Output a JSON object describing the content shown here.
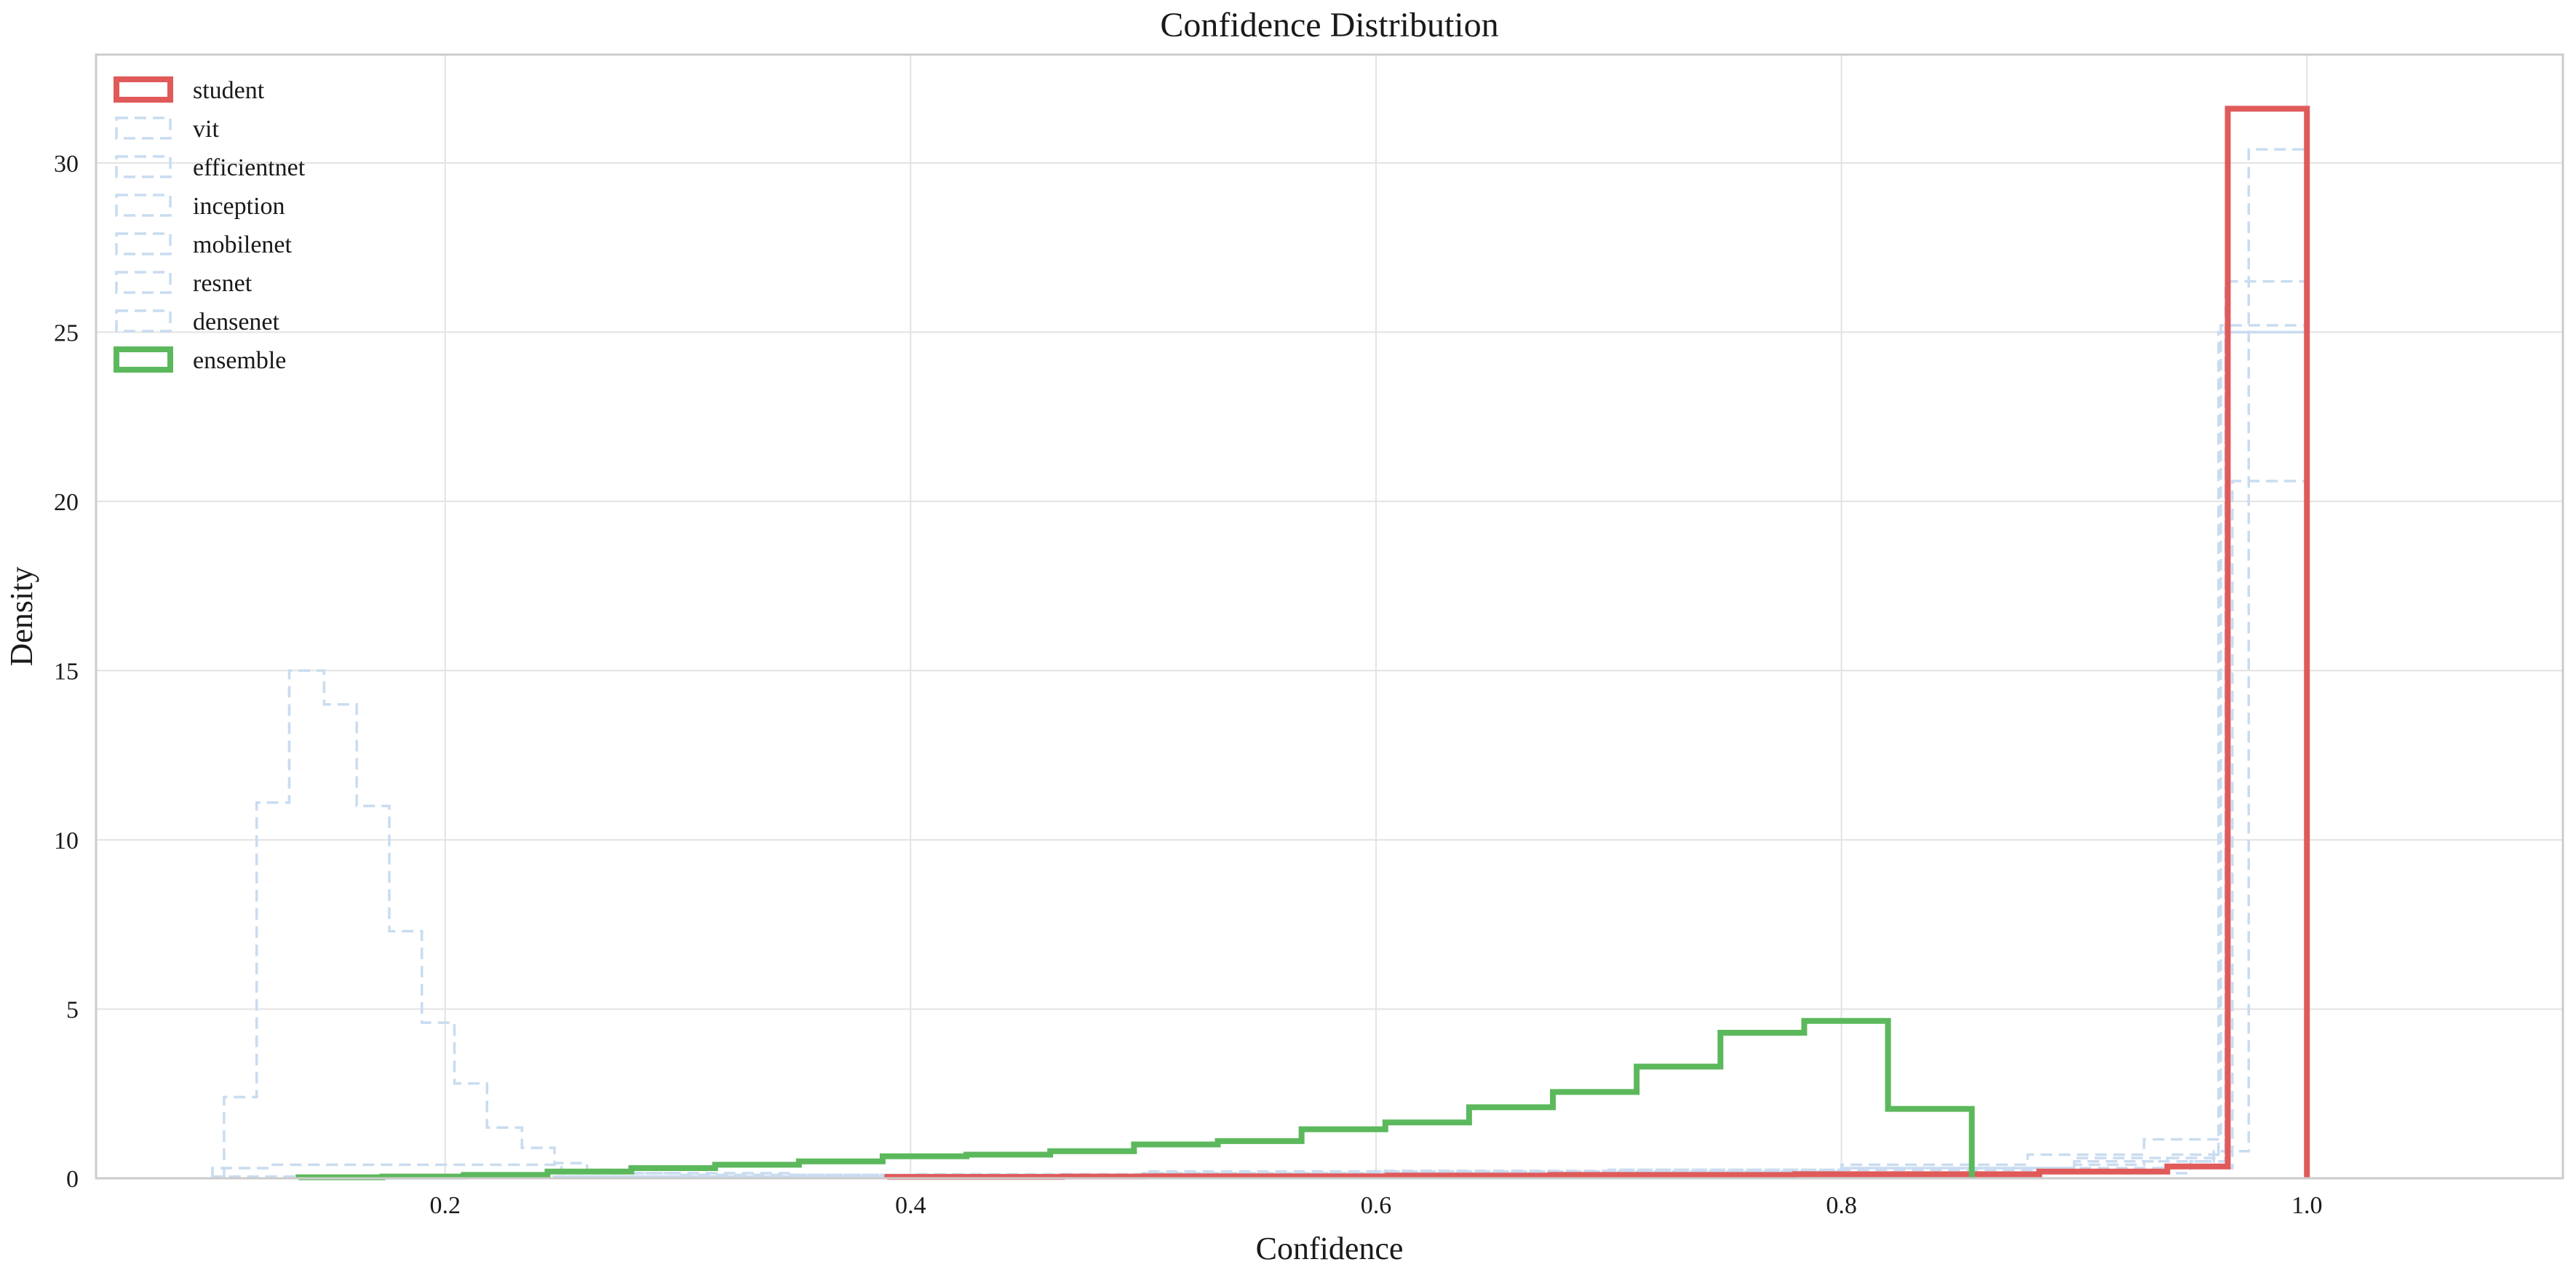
{
  "chart_data": {
    "type": "histogram",
    "title": "Confidence Distribution",
    "xlabel": "Confidence",
    "ylabel": "Density",
    "xlim": [
      0.05,
      1.11
    ],
    "ylim": [
      0,
      33.2
    ],
    "xticks": [
      0.2,
      0.4,
      0.6,
      0.8,
      1.0
    ],
    "xtick_labels": [
      "0.2",
      "0.4",
      "0.6",
      "0.8",
      "1.0"
    ],
    "yticks": [
      0,
      5,
      10,
      15,
      20,
      25,
      30
    ],
    "ytick_labels": [
      "0",
      "5",
      "10",
      "15",
      "20",
      "25",
      "30"
    ],
    "grid": true,
    "legend_position": "top-left",
    "series": [
      {
        "name": "student",
        "color": "#e05a5a",
        "style": "solid",
        "emphasis": "bold",
        "bins": [
          0.39,
          0.43,
          0.465,
          0.5,
          0.535,
          0.57,
          0.605,
          0.64,
          0.675,
          0.71,
          0.745,
          0.78,
          0.815,
          0.85,
          0.885,
          0.92,
          0.94,
          0.966,
          1.0
        ],
        "values": [
          0.04,
          0.04,
          0.05,
          0.06,
          0.06,
          0.06,
          0.08,
          0.08,
          0.1,
          0.1,
          0.1,
          0.12,
          0.12,
          0.12,
          0.2,
          0.2,
          0.35,
          31.6
        ]
      },
      {
        "name": "vit",
        "color": "#c9dcf0",
        "style": "dashed",
        "emphasis": "faded",
        "bins": [
          0.1,
          0.125,
          0.25,
          0.3,
          0.4,
          0.5,
          0.6,
          0.7,
          0.8,
          0.9,
          0.93,
          0.96,
          0.975,
          1.0
        ],
        "values": [
          0.3,
          0.4,
          0.15,
          0.1,
          0.12,
          0.15,
          0.18,
          0.2,
          0.25,
          0.4,
          0.5,
          0.8,
          30.4
        ]
      },
      {
        "name": "efficientnet",
        "color": "#c9dcf0",
        "style": "dashed",
        "emphasis": "faded",
        "bins": [
          0.1,
          0.2,
          0.3,
          0.4,
          0.5,
          0.6,
          0.7,
          0.8,
          0.9,
          0.94,
          0.965,
          1.0
        ],
        "values": [
          0.05,
          0.05,
          0.05,
          0.08,
          0.15,
          0.2,
          0.25,
          0.3,
          0.5,
          0.7,
          26.5
        ]
      },
      {
        "name": "inception",
        "color": "#c9dcf0",
        "style": "dashed",
        "emphasis": "faded",
        "bins": [
          0.2,
          0.3,
          0.4,
          0.5,
          0.6,
          0.7,
          0.8,
          0.88,
          0.93,
          0.963,
          1.0
        ],
        "values": [
          0.05,
          0.05,
          0.08,
          0.2,
          0.22,
          0.25,
          0.4,
          0.7,
          1.15,
          25.2
        ]
      },
      {
        "name": "mobilenet",
        "color": "#c9dcf0",
        "style": "dashed",
        "emphasis": "faded",
        "bins": [
          0.3,
          0.4,
          0.5,
          0.6,
          0.7,
          0.8,
          0.9,
          0.962,
          1.0
        ],
        "values": [
          0.05,
          0.08,
          0.12,
          0.15,
          0.2,
          0.3,
          0.6,
          25.0
        ]
      },
      {
        "name": "resnet",
        "color": "#c9dcf0",
        "style": "dashed",
        "emphasis": "faded",
        "bins": [
          0.105,
          0.119,
          0.133,
          0.148,
          0.162,
          0.176,
          0.19,
          0.204,
          0.218,
          0.233,
          0.247,
          0.261,
          0.275,
          0.35,
          0.5,
          0.65,
          0.8,
          0.95,
          0.968,
          1.0
        ],
        "values": [
          2.4,
          11.1,
          15.0,
          14.0,
          11.0,
          7.3,
          4.6,
          2.8,
          1.5,
          0.9,
          0.45,
          0.25,
          0.15,
          0.1,
          0.1,
          0.1,
          0.15,
          0.3,
          20.6
        ]
      },
      {
        "name": "densenet",
        "color": "#c9dcf0",
        "style": "dashed",
        "emphasis": "faded",
        "bins": [
          0.25,
          0.4,
          0.55,
          0.7,
          0.85,
          0.95,
          0.965,
          1.0
        ],
        "values": [
          0.05,
          0.08,
          0.1,
          0.15,
          0.3,
          0.5,
          25.0
        ]
      },
      {
        "name": "ensemble",
        "color": "#5cb85c",
        "style": "solid",
        "emphasis": "bold",
        "bins": [
          0.137,
          0.173,
          0.208,
          0.244,
          0.28,
          0.316,
          0.352,
          0.388,
          0.424,
          0.46,
          0.496,
          0.532,
          0.568,
          0.604,
          0.64,
          0.676,
          0.712,
          0.748,
          0.784,
          0.82,
          0.856
        ],
        "values": [
          0.03,
          0.05,
          0.1,
          0.2,
          0.3,
          0.4,
          0.5,
          0.65,
          0.7,
          0.8,
          1.0,
          1.1,
          1.45,
          1.65,
          2.1,
          2.55,
          3.3,
          4.3,
          4.65,
          2.05
        ]
      }
    ]
  }
}
